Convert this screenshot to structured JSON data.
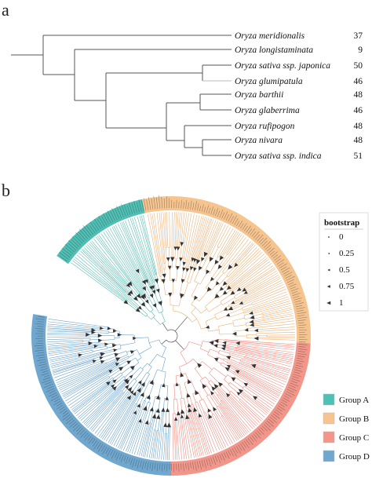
{
  "panel_a": {
    "label": "a",
    "taxa": [
      {
        "name": "Oryza meridionalis",
        "count": "37"
      },
      {
        "name": "Oryza longistaminata",
        "count": "9"
      },
      {
        "name": "Oryza sativa ssp. japonica",
        "count": "50"
      },
      {
        "name": "Oryza glumipatula",
        "count": "46"
      },
      {
        "name": "Oryza barthii",
        "count": "48"
      },
      {
        "name": "Oryza glaberrima",
        "count": "46"
      },
      {
        "name": "Oryza rufipogon",
        "count": "48"
      },
      {
        "name": "Oryza nivara",
        "count": "48"
      },
      {
        "name": "Oryza sativa ssp. indica",
        "count": "51"
      }
    ]
  },
  "panel_b": {
    "label": "b",
    "bootstrap_legend": {
      "title": "bootstrap",
      "entries": [
        "0",
        "0.25",
        "0.5",
        "0.75",
        "1"
      ]
    },
    "groups": [
      {
        "name": "Group A",
        "color": "#4fc0b5"
      },
      {
        "name": "Group B",
        "color": "#f6c48f"
      },
      {
        "name": "Group C",
        "color": "#f2968a"
      },
      {
        "name": "Group D",
        "color": "#6fa7cf"
      }
    ]
  }
}
